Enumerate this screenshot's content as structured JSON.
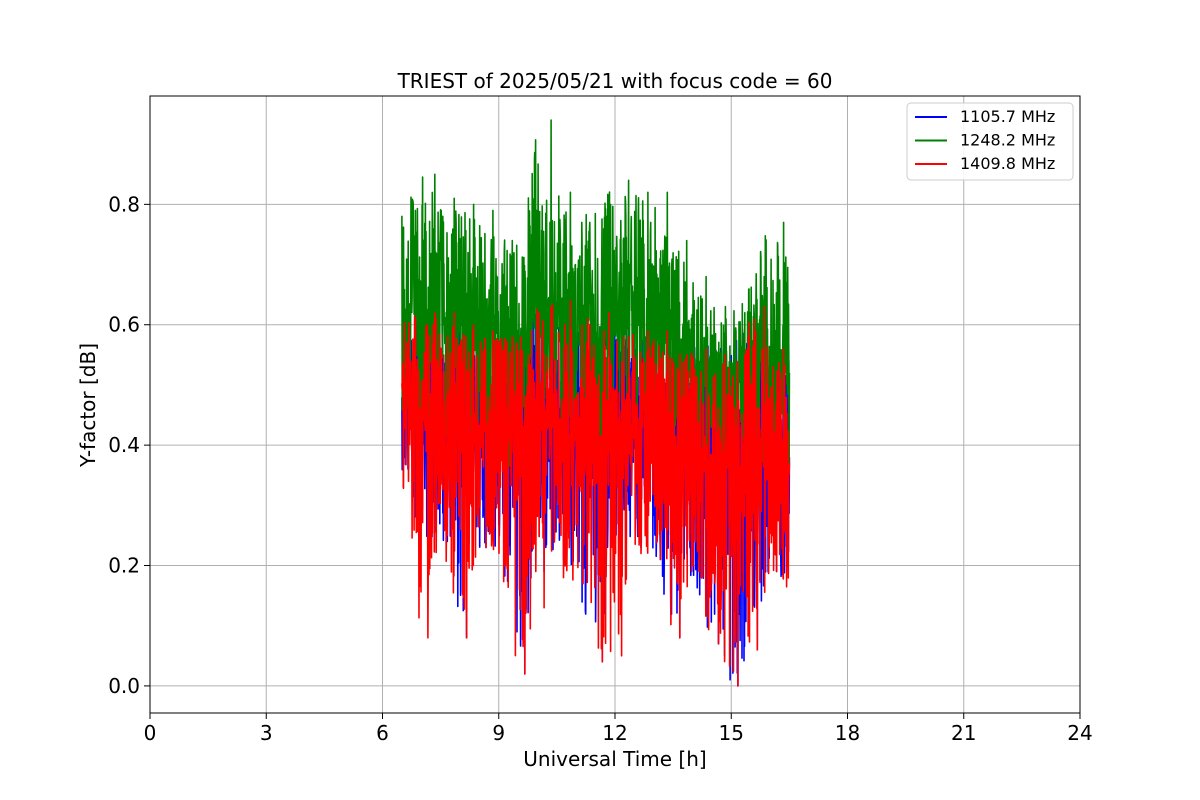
{
  "chart_data": {
    "type": "line",
    "title": "TRIEST of 2025/05/21 with focus code = 60",
    "xlabel": "Universal Time [h]",
    "ylabel": "Y-factor [dB]",
    "xlim": [
      0,
      24
    ],
    "ylim": [
      -0.045,
      0.98
    ],
    "x_ticks": [
      0,
      3,
      6,
      9,
      12,
      15,
      18,
      21,
      24
    ],
    "x_tick_labels": [
      "0",
      "3",
      "6",
      "9",
      "12",
      "15",
      "18",
      "21",
      "24"
    ],
    "y_ticks": [
      0.0,
      0.2,
      0.4,
      0.6,
      0.8
    ],
    "y_tick_labels": [
      "0.0",
      "0.2",
      "0.4",
      "0.6",
      "0.8"
    ],
    "grid": true,
    "legend_position": "top-right",
    "series": [
      {
        "name": "1105.7 MHz",
        "color": "#0000ff",
        "x": [
          6.5,
          7.0,
          7.5,
          8.0,
          8.5,
          9.0,
          9.5,
          10.0,
          10.5,
          11.0,
          11.5,
          12.0,
          12.5,
          13.0,
          13.5,
          14.0,
          14.5,
          15.0,
          15.5,
          16.0,
          16.5
        ],
        "y": [
          0.5,
          0.45,
          0.44,
          0.44,
          0.43,
          0.42,
          0.4,
          0.43,
          0.44,
          0.42,
          0.42,
          0.45,
          0.43,
          0.43,
          0.4,
          0.4,
          0.38,
          0.37,
          0.4,
          0.38,
          0.38
        ],
        "y_min": [
          0.36,
          0.24,
          0.24,
          0.08,
          0.23,
          0.22,
          0.02,
          0.19,
          0.21,
          0.17,
          0.04,
          0.2,
          0.23,
          0.21,
          0.08,
          0.19,
          0.07,
          0.0,
          0.06,
          0.19,
          0.16
        ],
        "y_max": [
          0.61,
          0.62,
          0.62,
          0.6,
          0.6,
          0.58,
          0.59,
          0.63,
          0.64,
          0.6,
          0.63,
          0.63,
          0.59,
          0.59,
          0.55,
          0.58,
          0.58,
          0.56,
          0.63,
          0.56,
          0.55
        ]
      },
      {
        "name": "1248.2 MHz",
        "color": "#008000",
        "x": [
          6.5,
          7.0,
          7.5,
          8.0,
          8.5,
          9.0,
          9.5,
          10.0,
          10.5,
          11.0,
          11.5,
          12.0,
          12.5,
          13.0,
          13.5,
          14.0,
          14.5,
          15.0,
          15.5,
          16.0,
          16.5
        ],
        "y": [
          0.62,
          0.62,
          0.6,
          0.6,
          0.59,
          0.58,
          0.56,
          0.62,
          0.62,
          0.6,
          0.58,
          0.62,
          0.6,
          0.6,
          0.57,
          0.55,
          0.52,
          0.5,
          0.55,
          0.53,
          0.52
        ],
        "y_min": [
          0.45,
          0.42,
          0.42,
          0.4,
          0.4,
          0.38,
          0.33,
          0.42,
          0.42,
          0.4,
          0.38,
          0.41,
          0.4,
          0.4,
          0.36,
          0.34,
          0.3,
          0.28,
          0.33,
          0.32,
          0.33
        ],
        "y_max": [
          0.79,
          0.85,
          0.81,
          0.8,
          0.79,
          0.74,
          0.75,
          0.94,
          0.82,
          0.77,
          0.8,
          0.84,
          0.82,
          0.82,
          0.74,
          0.68,
          0.63,
          0.62,
          0.68,
          0.77,
          0.7
        ]
      },
      {
        "name": "1409.8 MHz",
        "color": "#ff0000",
        "x": [
          6.5,
          7.0,
          7.5,
          8.0,
          8.5,
          9.0,
          9.5,
          10.0,
          10.5,
          11.0,
          11.5,
          12.0,
          12.5,
          13.0,
          13.5,
          14.0,
          14.5,
          15.0,
          15.5,
          16.0,
          16.5
        ],
        "y": [
          0.5,
          0.44,
          0.43,
          0.43,
          0.42,
          0.41,
          0.39,
          0.42,
          0.43,
          0.41,
          0.41,
          0.44,
          0.42,
          0.42,
          0.39,
          0.39,
          0.37,
          0.36,
          0.39,
          0.37,
          0.37
        ],
        "y_min": [
          0.34,
          0.08,
          0.25,
          0.08,
          0.23,
          0.2,
          0.02,
          0.13,
          0.18,
          0.17,
          0.04,
          0.05,
          0.22,
          0.21,
          0.08,
          0.19,
          0.07,
          0.0,
          0.06,
          0.19,
          0.16
        ],
        "y_max": [
          0.61,
          0.62,
          0.62,
          0.6,
          0.59,
          0.58,
          0.59,
          0.63,
          0.64,
          0.6,
          0.62,
          0.58,
          0.59,
          0.59,
          0.55,
          0.56,
          0.55,
          0.55,
          0.63,
          0.56,
          0.55
        ]
      }
    ]
  }
}
